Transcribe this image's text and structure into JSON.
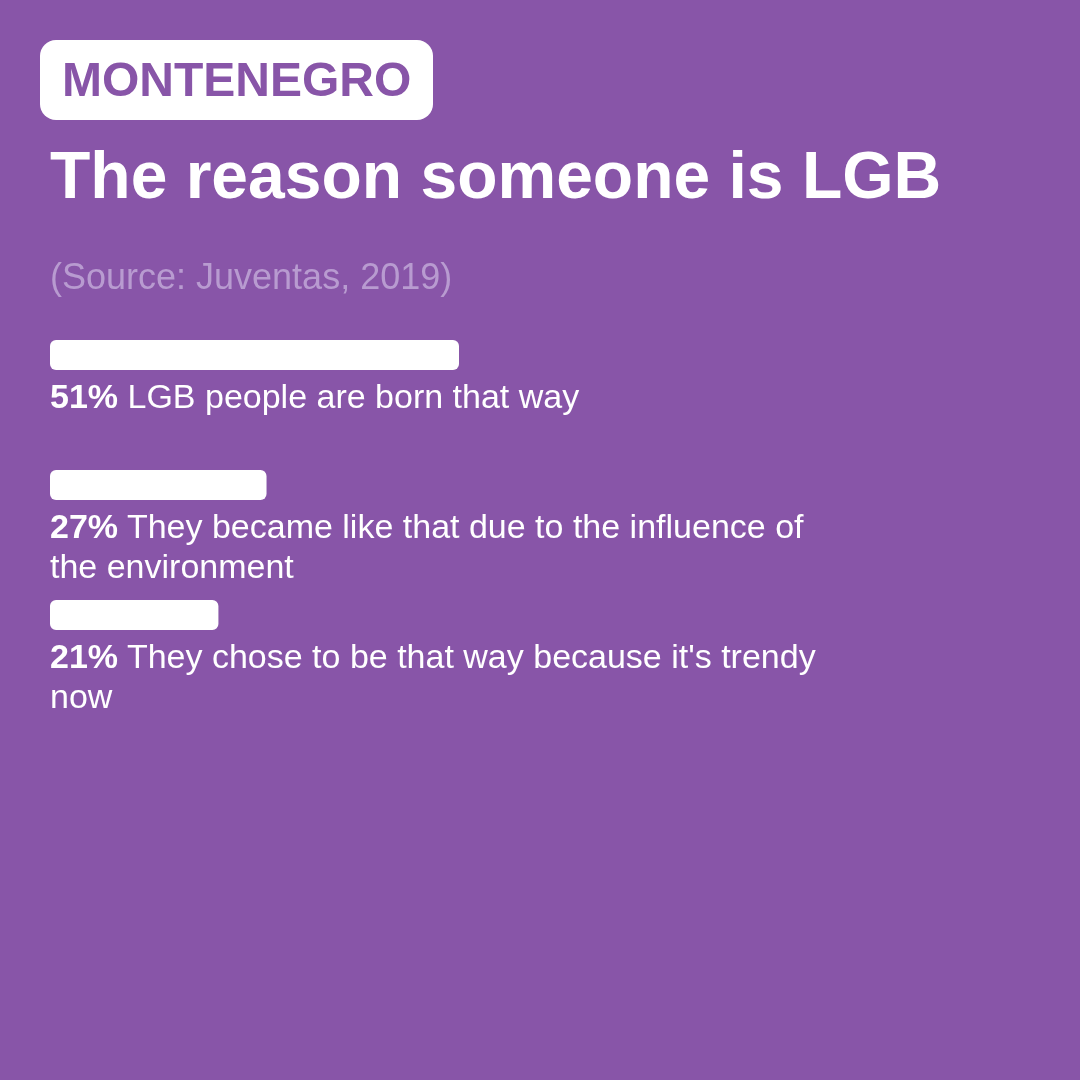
{
  "chart_data": {
    "type": "bar",
    "orientation": "horizontal",
    "subtitle": "MONTENEGRO",
    "title": "The reason someone is LGB",
    "annotations": [
      "(Source: Juventas, 2019)"
    ],
    "categories": [
      "LGB people are born that way",
      "They became like that due to the influence of the environment",
      "They chose to be that way because it's trendy now"
    ],
    "values": [
      51,
      27,
      21
    ],
    "value_labels": [
      "51%",
      "27%",
      "21%"
    ],
    "color": "#ffffff"
  }
}
